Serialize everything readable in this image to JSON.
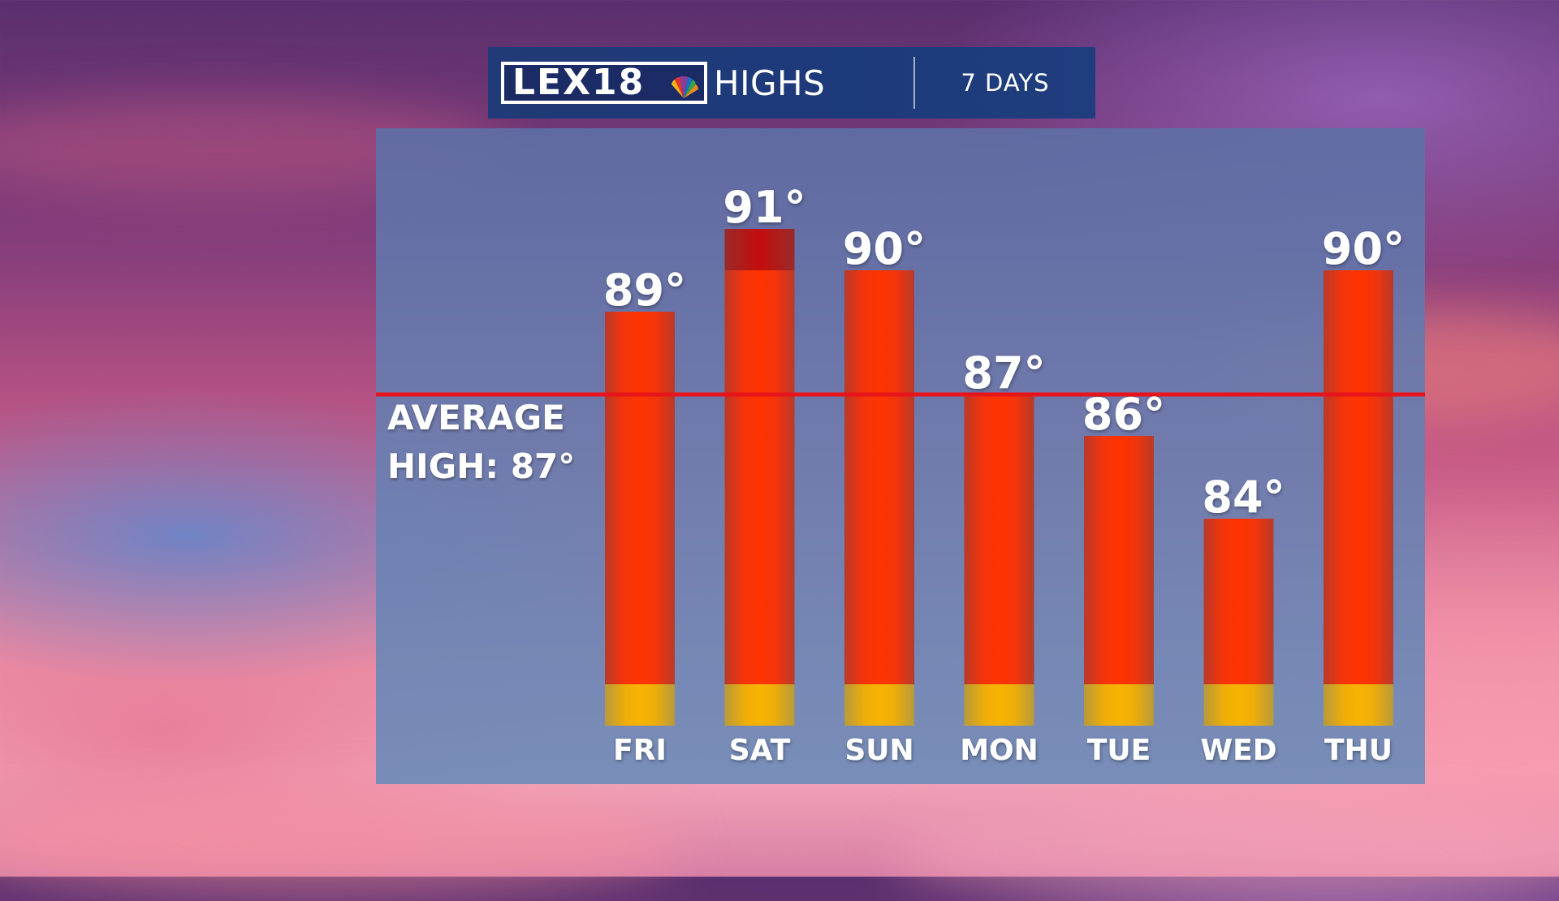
{
  "header": {
    "logo": "LEX18",
    "title": "HIGHS",
    "range": "7 DAYS"
  },
  "chart_data": {
    "type": "bar",
    "categories": [
      "FRI",
      "SAT",
      "SUN",
      "MON",
      "TUE",
      "WED",
      "THU"
    ],
    "values": [
      89,
      91,
      90,
      87,
      86,
      84,
      90
    ],
    "value_labels": [
      "89°",
      "91°",
      "90°",
      "87°",
      "86°",
      "84°",
      "90°"
    ],
    "unit": "°",
    "reference_line": {
      "value": 87,
      "label_line1": "AVERAGE",
      "label_line2": "HIGH: 87°",
      "color": "#e8141c"
    },
    "bar_color": "#ff3200",
    "bar_base_color": "#f2b000",
    "record_color": "#b80e0e",
    "grid": false,
    "legend": "none"
  }
}
